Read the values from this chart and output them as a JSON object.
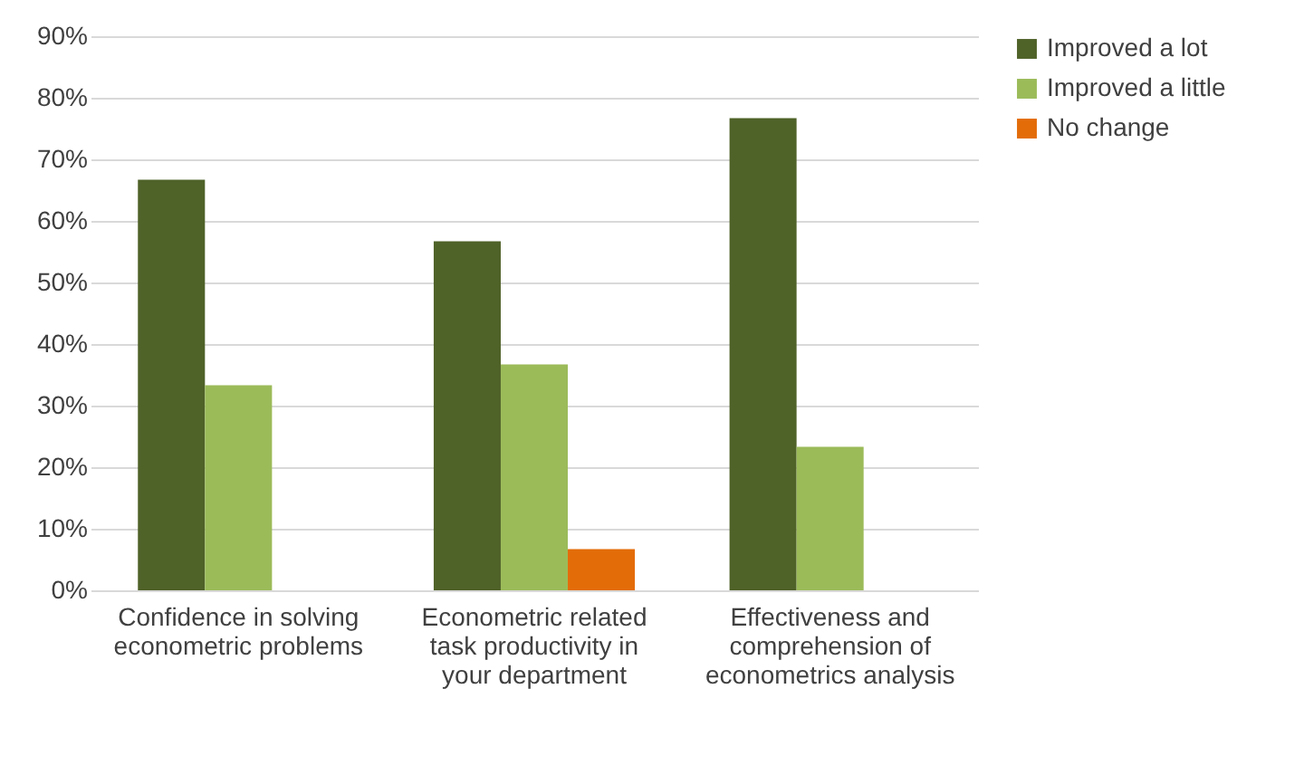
{
  "chart_data": {
    "type": "bar",
    "categories": [
      "Confidence in solving econometric problems",
      "Econometric related task productivity in your department",
      "Effectiveness and comprehension of econometrics analysis"
    ],
    "series": [
      {
        "name": "Improved a lot",
        "color": "#4f6228",
        "values": [
          66.7,
          56.7,
          76.7
        ]
      },
      {
        "name": "Improved a little",
        "color": "#9bbb59",
        "values": [
          33.3,
          36.7,
          23.3
        ]
      },
      {
        "name": "No change",
        "color": "#e36c09",
        "values": [
          0,
          6.7,
          0
        ]
      }
    ],
    "ylim": [
      0,
      90
    ],
    "yticks": [
      {
        "value": 0,
        "label": "0%"
      },
      {
        "value": 10,
        "label": "10%"
      },
      {
        "value": 20,
        "label": "20%"
      },
      {
        "value": 30,
        "label": "30%"
      },
      {
        "value": 40,
        "label": "40%"
      },
      {
        "value": 50,
        "label": "50%"
      },
      {
        "value": 60,
        "label": "60%"
      },
      {
        "value": 70,
        "label": "70%"
      },
      {
        "value": 80,
        "label": "80%"
      },
      {
        "value": 90,
        "label": "90%"
      }
    ],
    "grid": "y",
    "legend": "right"
  }
}
